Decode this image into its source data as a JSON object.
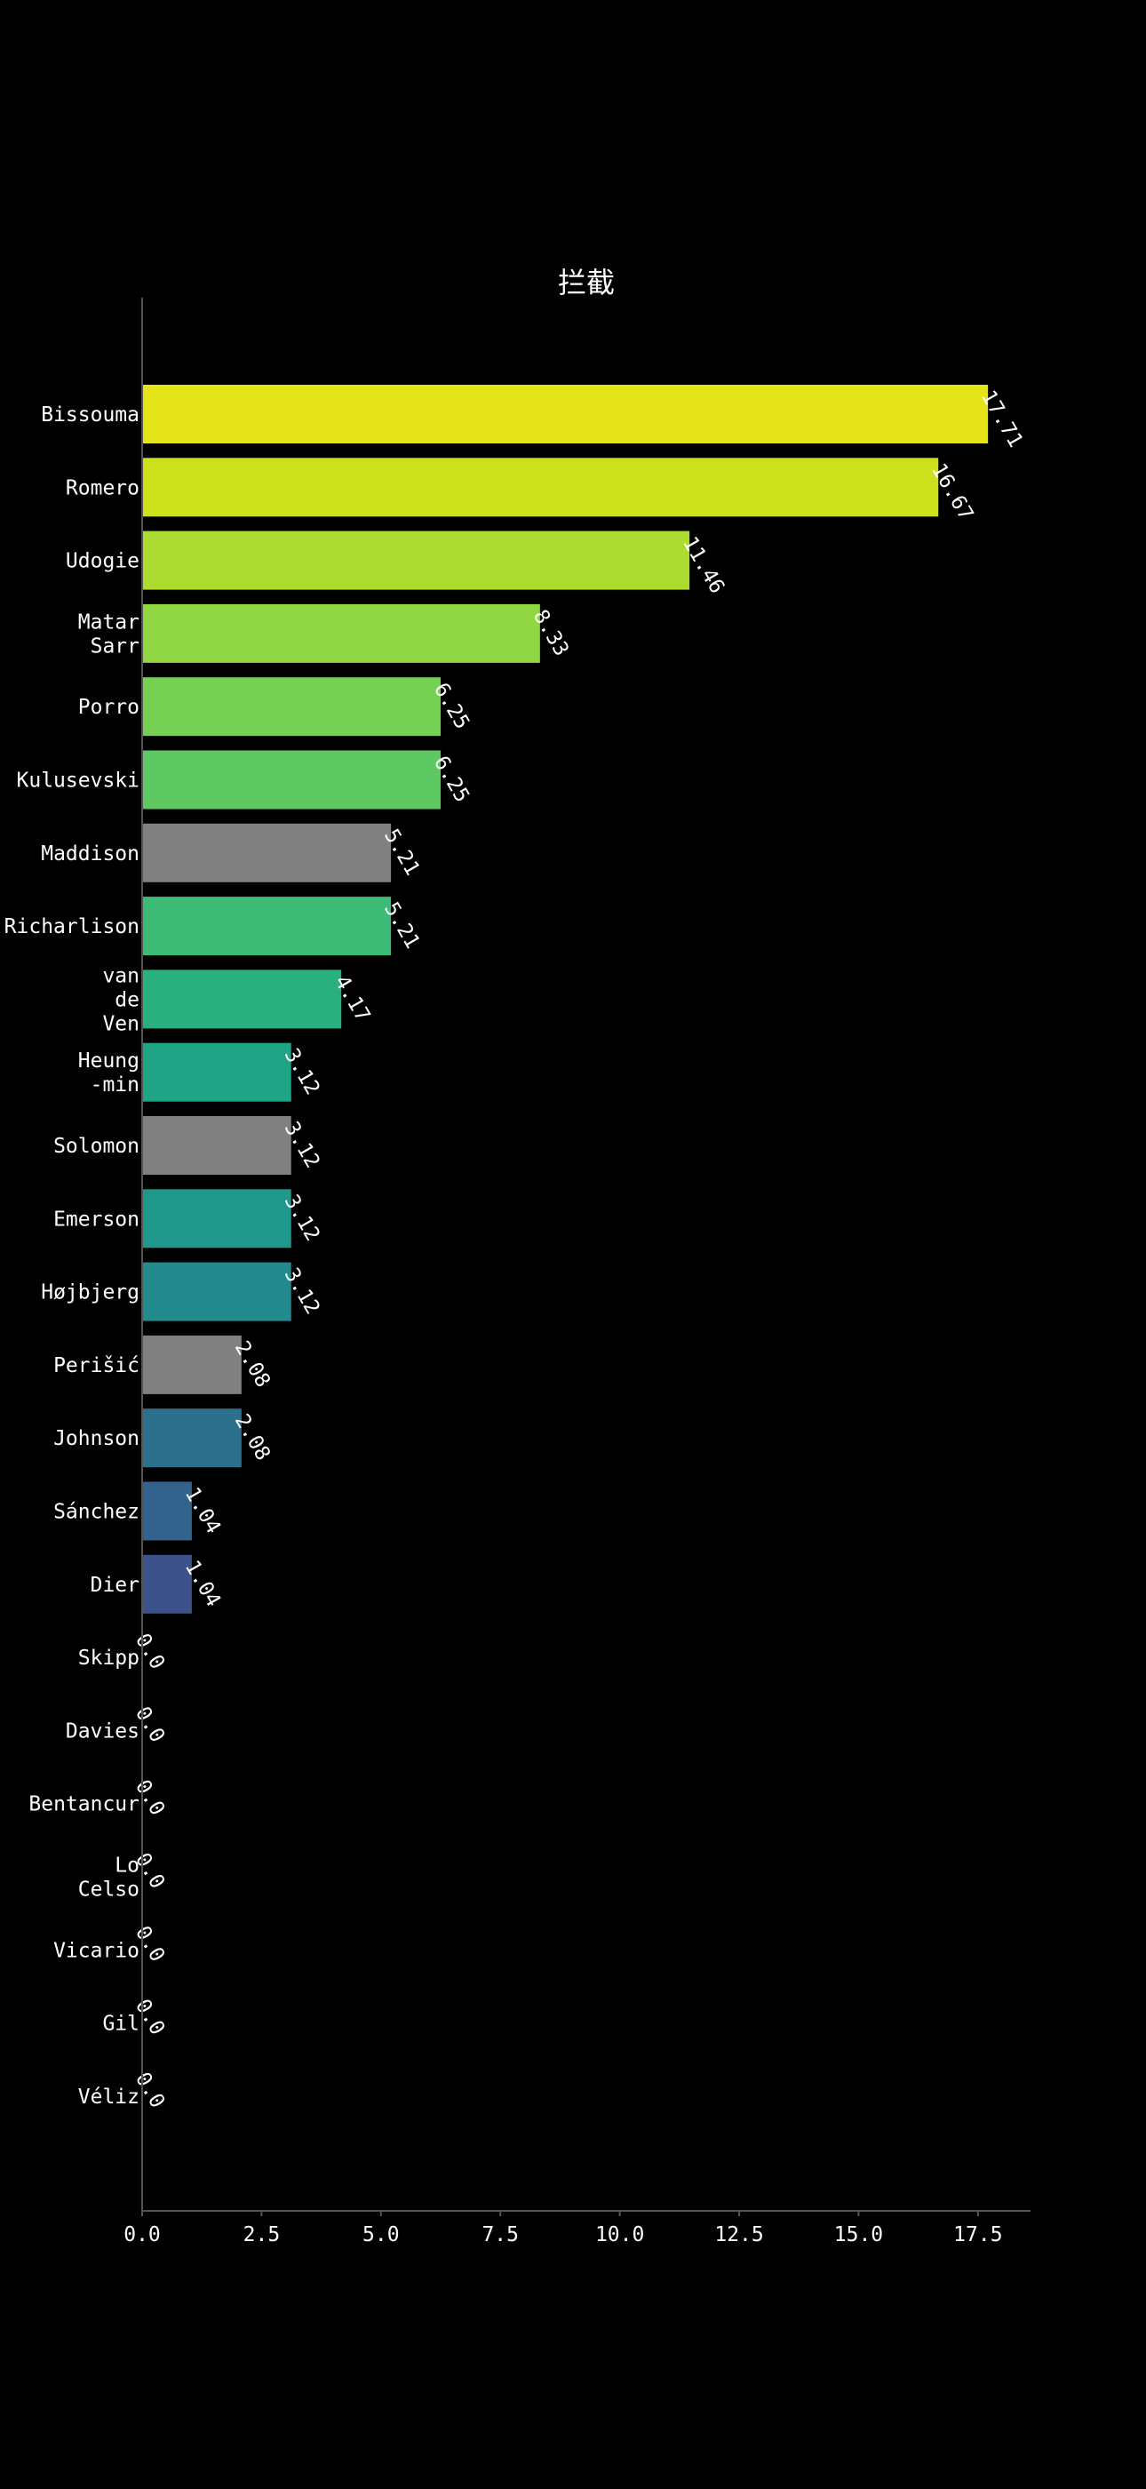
{
  "chart_data": {
    "type": "bar",
    "orientation": "horizontal",
    "title": "拦截",
    "xlabel": "",
    "ylabel": "",
    "xlim": [
      0,
      18.6
    ],
    "xticks": [
      0.0,
      2.5,
      5.0,
      7.5,
      10.0,
      12.5,
      15.0,
      17.5
    ],
    "xtick_labels": [
      "0.0",
      "2.5",
      "5.0",
      "7.5",
      "10.0",
      "12.5",
      "15.0",
      "17.5"
    ],
    "grid": false,
    "categories": [
      [
        "Bissouma"
      ],
      [
        "Romero"
      ],
      [
        "Udogie"
      ],
      [
        "Matar",
        "Sarr"
      ],
      [
        "Porro"
      ],
      [
        "Kulusevski"
      ],
      [
        "Maddison"
      ],
      [
        "Richarlison"
      ],
      [
        "van",
        "de",
        "Ven"
      ],
      [
        "Heung",
        "-min"
      ],
      [
        "Solomon"
      ],
      [
        "Emerson"
      ],
      [
        "Højbjerg"
      ],
      [
        "Perišić"
      ],
      [
        "Johnson"
      ],
      [
        "Sánchez"
      ],
      [
        "Dier"
      ],
      [
        "Skipp"
      ],
      [
        "Davies"
      ],
      [
        "Bentancur"
      ],
      [
        "Lo",
        "Celso"
      ],
      [
        "Vicario"
      ],
      [
        "Gil"
      ],
      [
        "Véliz"
      ]
    ],
    "values": [
      17.71,
      16.67,
      11.46,
      8.33,
      6.25,
      6.25,
      5.21,
      5.21,
      4.17,
      3.12,
      3.12,
      3.12,
      3.12,
      2.08,
      2.08,
      1.04,
      1.04,
      0.0,
      0.0,
      0.0,
      0.0,
      0.0,
      0.0,
      0.0
    ],
    "value_labels": [
      "17.71",
      "16.67",
      "11.46",
      "8.33",
      "6.25",
      "6.25",
      "5.21",
      "5.21",
      "4.17",
      "3.12",
      "3.12",
      "3.12",
      "3.12",
      "2.08",
      "2.08",
      "1.04",
      "1.04",
      "0.0",
      "0.0",
      "0.0",
      "0.0",
      "0.0",
      "0.0",
      "0.0"
    ],
    "colors": [
      "#e5e419",
      "#cde11d",
      "#addc30",
      "#90d743",
      "#75d054",
      "#5ec962",
      "#808080",
      "#3bbb75",
      "#2ab07f",
      "#20a486",
      "#808080",
      "#1f978b",
      "#238a8d",
      "#808080",
      "#2d708e",
      "#33638d",
      "#3b528b",
      "#000000",
      "#000000",
      "#000000",
      "#000000",
      "#000000",
      "#000000",
      "#000000"
    ],
    "axis_color": "#555555",
    "text_color": "#ffffff",
    "background": "#000000"
  }
}
